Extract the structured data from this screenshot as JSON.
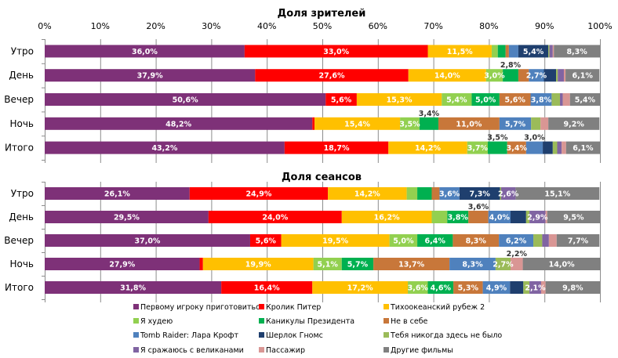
{
  "chart_data": {
    "type": "bar",
    "orientation": "horizontal-stacked-100",
    "legend": {
      "placement": "bottom",
      "entries": [
        "Первому игроку приготовиться",
        "Кролик Питер",
        "Тихоокеанский рубеж 2",
        "Я худею",
        "Каникулы Президента",
        "Не в себе",
        "Tomb Raider: Лара Крофт",
        "Шерлок Гномс",
        "Тебя никогда здесь не было",
        "Я сражаюсь с великанами",
        "Пассажир",
        "Другие фильмы"
      ]
    },
    "colors": [
      "#7E3178",
      "#FF0000",
      "#FFC000",
      "#92D050",
      "#00B050",
      "#C8773A",
      "#4F81BD",
      "#1F3F6E",
      "#9BBB59",
      "#8064A2",
      "#D99694",
      "#808080"
    ],
    "xlim": [
      0,
      100
    ],
    "x_ticks": [
      "0%",
      "10%",
      "20%",
      "30%",
      "40%",
      "50%",
      "60%",
      "70%",
      "80%",
      "90%",
      "100%"
    ],
    "grid": true,
    "charts": [
      {
        "title": "Доля зрителей",
        "categories": [
          "Утро",
          "День",
          "Вечер",
          "Ночь",
          "Итого"
        ],
        "rows": [
          {
            "values": [
              36.0,
              33.0,
              11.5,
              1.1,
              1.4,
              0.6,
              1.7,
              5.4,
              0.2,
              0.6,
              0.2,
              8.3
            ],
            "labeled": [
              0,
              1,
              2,
              7,
              11
            ]
          },
          {
            "values": [
              37.9,
              27.6,
              14.0,
              3.0,
              2.8,
              1.9,
              2.7,
              2.2,
              0.3,
              1.1,
              0.3,
              6.1
            ],
            "labeled": [
              0,
              1,
              2,
              3,
              4,
              6,
              11
            ]
          },
          {
            "values": [
              50.6,
              5.6,
              15.3,
              5.4,
              5.0,
              5.6,
              3.8,
              0,
              1.5,
              0.5,
              1.3,
              5.4
            ],
            "labeled": [
              0,
              1,
              2,
              3,
              4,
              5,
              6,
              11
            ]
          },
          {
            "values": [
              48.2,
              0.4,
              15.4,
              3.5,
              3.4,
              11.0,
              5.7,
              0,
              1.7,
              0,
              1.4,
              9.2
            ],
            "labeled": [
              0,
              2,
              3,
              4,
              5,
              6,
              11
            ]
          },
          {
            "values": [
              43.2,
              18.7,
              14.2,
              3.7,
              3.5,
              3.4,
              3.0,
              1.8,
              0.8,
              0.8,
              0.8,
              6.1
            ],
            "labeled": [
              0,
              1,
              2,
              3,
              4,
              5,
              6,
              11
            ]
          }
        ]
      },
      {
        "title": "Доля сеансов",
        "categories": [
          "Утро",
          "День",
          "Вечер",
          "Ночь",
          "Итого"
        ],
        "rows": [
          {
            "values": [
              26.1,
              24.9,
              14.2,
              1.9,
              2.6,
              1.4,
              3.6,
              7.3,
              0.2,
              2.6,
              0,
              15.1
            ],
            "labeled": [
              0,
              1,
              2,
              6,
              7,
              9,
              11
            ]
          },
          {
            "values": [
              29.5,
              24.0,
              16.2,
              2.8,
              3.8,
              3.6,
              4.0,
              2.8,
              0.6,
              2.9,
              0.3,
              9.5
            ],
            "labeled": [
              0,
              1,
              2,
              4,
              5,
              6,
              9,
              11
            ]
          },
          {
            "values": [
              37.0,
              5.6,
              19.5,
              5.0,
              6.4,
              8.3,
              6.2,
              0,
              1.6,
              1.2,
              1.4,
              7.7
            ],
            "labeled": [
              0,
              1,
              2,
              3,
              4,
              5,
              6,
              11
            ]
          },
          {
            "values": [
              27.9,
              0.6,
              19.9,
              5.1,
              5.7,
              13.7,
              8.3,
              0,
              2.7,
              0,
              2.2,
              14.0
            ],
            "labeled": [
              0,
              2,
              3,
              4,
              5,
              6,
              8,
              10,
              11
            ]
          },
          {
            "values": [
              31.8,
              16.4,
              17.2,
              3.6,
              4.6,
              5.3,
              4.9,
              2.4,
              1.1,
              2.1,
              0.8,
              9.8
            ],
            "labeled": [
              0,
              1,
              2,
              3,
              4,
              5,
              6,
              9,
              11
            ]
          }
        ]
      }
    ]
  }
}
